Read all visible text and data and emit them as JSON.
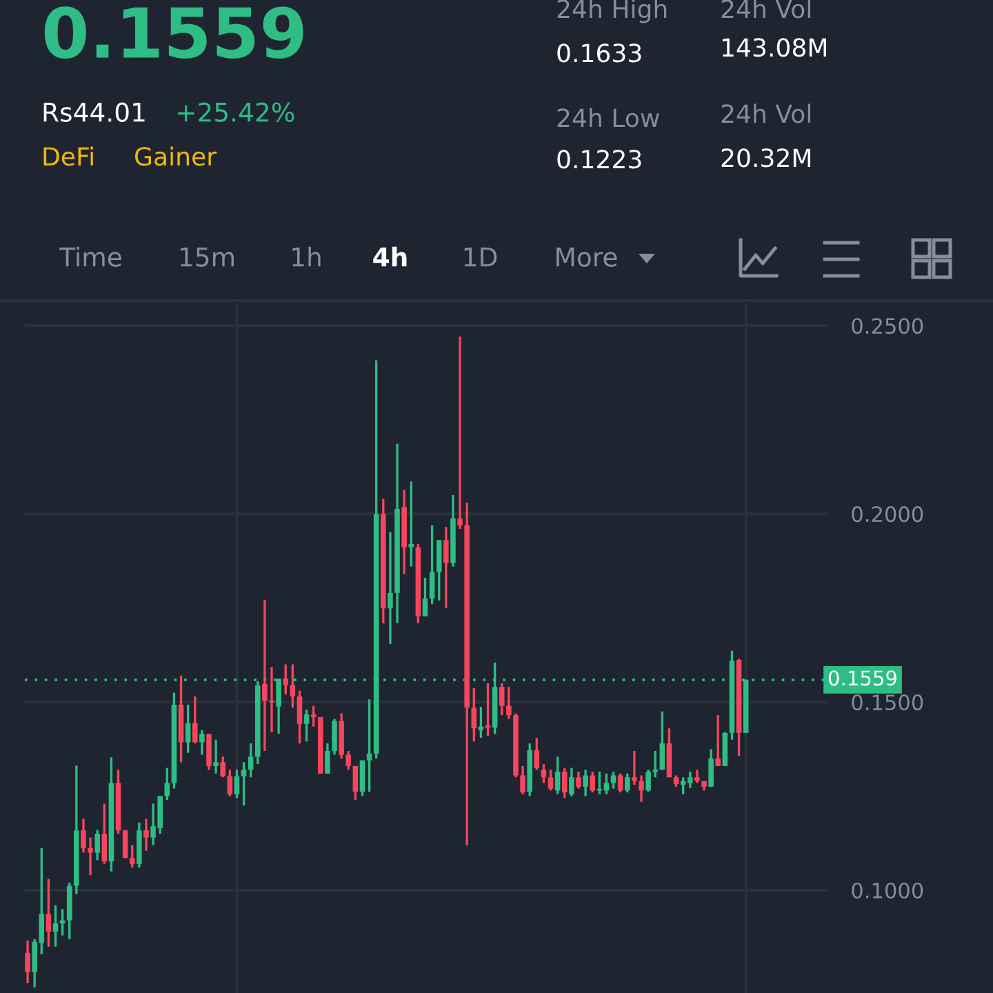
{
  "chart_data": {
    "type": "candlestick",
    "title": "0.1559",
    "annotations": [
      "Rs44.01",
      "+25.42%",
      "DeFi",
      "Gainer",
      "24h High",
      "0.1633",
      "24h Low",
      "0.1223",
      "24h Vol",
      "143.08M",
      "24h Vol",
      "20.32M",
      "Time",
      "15m",
      "1h",
      "4h",
      "1D",
      "More"
    ],
    "categories": [
      null,
      null,
      null,
      null,
      null,
      null,
      null,
      null,
      null,
      null,
      null,
      null,
      null,
      null,
      null,
      null,
      null,
      null,
      null,
      null,
      null,
      null,
      null,
      null,
      null,
      null,
      null,
      null,
      null,
      null,
      null,
      null,
      null,
      null,
      null,
      null,
      null,
      null,
      null,
      null,
      null,
      null,
      null,
      null,
      null,
      null,
      null,
      null,
      null,
      null,
      null,
      null,
      null,
      null,
      null,
      null,
      null,
      null,
      null,
      null,
      null,
      null,
      null,
      null,
      null,
      null,
      null,
      null,
      null,
      null,
      null,
      null,
      null,
      null,
      null,
      null,
      null,
      null,
      null,
      null,
      null,
      null,
      null,
      null,
      null,
      null,
      null,
      null,
      null,
      null,
      null,
      null,
      null,
      null,
      null,
      null,
      null,
      null,
      null,
      null,
      null,
      null,
      null,
      null
    ],
    "ohlc": [
      [
        0.0833,
        0.0866,
        0.0753,
        0.0783
      ],
      [
        0.0783,
        0.087,
        0.0742,
        0.0863
      ],
      [
        0.086,
        0.1112,
        0.083,
        0.0937
      ],
      [
        0.0937,
        0.103,
        0.085,
        0.089
      ],
      [
        0.089,
        0.096,
        0.085,
        0.0912
      ],
      [
        0.0912,
        0.095,
        0.088,
        0.092
      ],
      [
        0.092,
        0.102,
        0.087,
        0.1012
      ],
      [
        0.1012,
        0.1331,
        0.099,
        0.1159
      ],
      [
        0.1159,
        0.119,
        0.11,
        0.1112
      ],
      [
        0.1112,
        0.114,
        0.104,
        0.11
      ],
      [
        0.11,
        0.116,
        0.108,
        0.115
      ],
      [
        0.115,
        0.123,
        0.107,
        0.1077
      ],
      [
        0.1077,
        0.1353,
        0.105,
        0.1285
      ],
      [
        0.1285,
        0.132,
        0.115,
        0.1159
      ],
      [
        0.1159,
        0.116,
        0.1085,
        0.1086
      ],
      [
        0.1086,
        0.112,
        0.106,
        0.107
      ],
      [
        0.107,
        0.118,
        0.106,
        0.1159
      ],
      [
        0.1159,
        0.119,
        0.1105,
        0.114
      ],
      [
        0.114,
        0.123,
        0.112,
        0.117
      ],
      [
        0.1165,
        0.125,
        0.115,
        0.125
      ],
      [
        0.125,
        0.1325,
        0.124,
        0.1285
      ],
      [
        0.1285,
        0.1525,
        0.127,
        0.1493
      ],
      [
        0.1493,
        0.157,
        0.134,
        0.1393
      ],
      [
        0.1393,
        0.1493,
        0.1365,
        0.1444
      ],
      [
        0.1444,
        0.1515,
        0.139,
        0.1393
      ],
      [
        0.1393,
        0.1425,
        0.136,
        0.1415
      ],
      [
        0.1415,
        0.1415,
        0.132,
        0.133
      ],
      [
        0.133,
        0.14,
        0.131,
        0.134
      ],
      [
        0.134,
        0.1355,
        0.13,
        0.1303
      ],
      [
        0.1303,
        0.132,
        0.125,
        0.1255
      ],
      [
        0.1255,
        0.132,
        0.1245,
        0.1303
      ],
      [
        0.1303,
        0.134,
        0.1225,
        0.132
      ],
      [
        0.132,
        0.139,
        0.13,
        0.1355
      ],
      [
        0.1355,
        0.1555,
        0.1335,
        0.1544
      ],
      [
        0.1548,
        0.1771,
        0.137,
        0.1504
      ],
      [
        0.1504,
        0.1593,
        0.142,
        0.15
      ],
      [
        0.1488,
        0.1562,
        0.1416,
        0.1562
      ],
      [
        0.1562,
        0.16,
        0.152,
        0.1545
      ],
      [
        0.1545,
        0.16,
        0.1485,
        0.1515
      ],
      [
        0.1515,
        0.153,
        0.139,
        0.1442
      ],
      [
        0.1442,
        0.148,
        0.1395,
        0.1467
      ],
      [
        0.1467,
        0.149,
        0.1435,
        0.146
      ],
      [
        0.146,
        0.146,
        0.131,
        0.131
      ],
      [
        0.131,
        0.139,
        0.131,
        0.137
      ],
      [
        0.137,
        0.1455,
        0.136,
        0.145
      ],
      [
        0.145,
        0.147,
        0.135,
        0.136
      ],
      [
        0.136,
        0.137,
        0.132,
        0.133
      ],
      [
        0.133,
        0.133,
        0.124,
        0.1262
      ],
      [
        0.1262,
        0.1345,
        0.125,
        0.1345
      ],
      [
        0.1345,
        0.1507,
        0.1262,
        0.1363
      ],
      [
        0.1363,
        0.2408,
        0.135,
        0.2
      ],
      [
        0.2,
        0.204,
        0.1709,
        0.1749
      ],
      [
        0.1749,
        0.1951,
        0.1654,
        0.179
      ],
      [
        0.179,
        0.2186,
        0.171,
        0.2013
      ],
      [
        0.2018,
        0.2064,
        0.184,
        0.1911
      ],
      [
        0.1911,
        0.2086,
        0.186,
        0.192
      ],
      [
        0.1911,
        0.192,
        0.171,
        0.1728
      ],
      [
        0.1728,
        0.183,
        0.1728,
        0.1775
      ],
      [
        0.1775,
        0.197,
        0.176,
        0.1845
      ],
      [
        0.1845,
        0.193,
        0.177,
        0.193
      ],
      [
        0.193,
        0.1965,
        0.175,
        0.187
      ],
      [
        0.187,
        0.205,
        0.186,
        0.1988
      ],
      [
        0.1988,
        0.2471,
        0.196,
        0.197
      ],
      [
        0.197,
        0.203,
        0.1119,
        0.1485
      ],
      [
        0.1485,
        0.1537,
        0.1395,
        0.143
      ],
      [
        0.1425,
        0.1487,
        0.1405,
        0.1435
      ],
      [
        0.1438,
        0.155,
        0.141,
        0.1432
      ],
      [
        0.1432,
        0.1605,
        0.1415,
        0.154
      ],
      [
        0.154,
        0.155,
        0.1465,
        0.149
      ],
      [
        0.149,
        0.154,
        0.1455,
        0.1465
      ],
      [
        0.1465,
        0.147,
        0.13,
        0.1305
      ],
      [
        0.1305,
        0.133,
        0.1255,
        0.126
      ],
      [
        0.1262,
        0.139,
        0.125,
        0.1372
      ],
      [
        0.1372,
        0.1405,
        0.132,
        0.1325
      ],
      [
        0.132,
        0.1335,
        0.1285,
        0.13
      ],
      [
        0.13,
        0.132,
        0.1265,
        0.127
      ],
      [
        0.1265,
        0.1355,
        0.1255,
        0.1315
      ],
      [
        0.1315,
        0.1325,
        0.1245,
        0.126
      ],
      [
        0.1255,
        0.1325,
        0.125,
        0.13
      ],
      [
        0.13,
        0.1315,
        0.127,
        0.1275
      ],
      [
        0.1275,
        0.132,
        0.125,
        0.1305
      ],
      [
        0.1305,
        0.1315,
        0.126,
        0.1265
      ],
      [
        0.1265,
        0.1315,
        0.1255,
        0.1268
      ],
      [
        0.1265,
        0.131,
        0.1255,
        0.1285
      ],
      [
        0.1285,
        0.1315,
        0.127,
        0.1305
      ],
      [
        0.1305,
        0.131,
        0.126,
        0.1265
      ],
      [
        0.1265,
        0.131,
        0.126,
        0.13
      ],
      [
        0.13,
        0.137,
        0.128,
        0.129
      ],
      [
        0.129,
        0.1305,
        0.1235,
        0.1265
      ],
      [
        0.1265,
        0.132,
        0.1262,
        0.1315
      ],
      [
        0.1315,
        0.137,
        0.13,
        0.132
      ],
      [
        0.132,
        0.1475,
        0.132,
        0.139
      ],
      [
        0.139,
        0.143,
        0.13,
        0.13
      ],
      [
        0.13,
        0.1305,
        0.1275,
        0.1282
      ],
      [
        0.128,
        0.13,
        0.1255,
        0.129
      ],
      [
        0.1285,
        0.1315,
        0.1272,
        0.13
      ],
      [
        0.13,
        0.132,
        0.1285,
        0.129
      ],
      [
        0.129,
        0.129,
        0.1265,
        0.1275
      ],
      [
        0.1275,
        0.1375,
        0.1275,
        0.135
      ],
      [
        0.135,
        0.1465,
        0.133,
        0.133
      ],
      [
        0.133,
        0.142,
        0.133,
        0.1418
      ],
      [
        0.1418,
        0.1636,
        0.14,
        0.161
      ],
      [
        0.1612,
        0.1615,
        0.1357,
        0.1418
      ],
      [
        0.1418,
        0.156,
        0.1418,
        0.1559
      ]
    ],
    "ylim": [
      0.0727,
      0.2559
    ],
    "yticks": [
      {
        "value": 0.1,
        "label": "0.1000"
      },
      {
        "value": 0.15,
        "label": "0.1500"
      },
      {
        "value": 0.2,
        "label": "0.2000"
      },
      {
        "value": 0.25,
        "label": "0.2500"
      }
    ],
    "tick_labels": "y",
    "grid": true,
    "ref_lines": [
      {
        "axis": "y",
        "value": 0.1559,
        "label": "0.1559",
        "color": "#2ebd85",
        "line_style": "dotted"
      }
    ]
  }
}
